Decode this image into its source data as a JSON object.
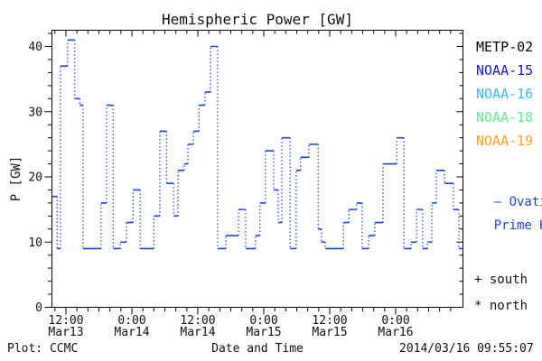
{
  "title": "Hemispheric Power [GW]",
  "footer": {
    "left": "Plot: CCMC",
    "timestamp": "2014/03/16 09:55:07"
  },
  "legend": {
    "items": [
      {
        "label": "METP-02",
        "color": "#000000"
      },
      {
        "label": "NOAA-15",
        "color": "#1414e0"
      },
      {
        "label": "NOAA-16",
        "color": "#33bbee"
      },
      {
        "label": "NOAA-18",
        "color": "#5fe98c"
      },
      {
        "label": "NOAA-19",
        "color": "#ff9e15"
      }
    ]
  },
  "annotations": {
    "ovation_line1": "— Ovation",
    "ovation_line2": "Prime HPI",
    "south": "+ south",
    "north": "* north"
  },
  "chart_data": {
    "type": "line",
    "subtype": "stepped-histogram-dotted",
    "title": "Hemispheric Power [GW]",
    "xlabel": "Date and Time",
    "ylabel": "P [GW]",
    "ylim": [
      0,
      42.5
    ],
    "y_major_ticks": [
      0,
      10,
      20,
      30,
      40
    ],
    "y_minor_step": 2,
    "grid": false,
    "x_hours_range": [
      9.4,
      84.3
    ],
    "x_minor_step_hours": 2,
    "x_major_ticks": [
      {
        "hour": 12,
        "time": "12:00",
        "date": "Mar13"
      },
      {
        "hour": 24,
        "time": "0:00",
        "date": "Mar14"
      },
      {
        "hour": 36,
        "time": "12:00",
        "date": "Mar14"
      },
      {
        "hour": 48,
        "time": "0:00",
        "date": "Mar15"
      },
      {
        "hour": 60,
        "time": "12:00",
        "date": "Mar15"
      },
      {
        "hour": 72,
        "time": "0:00",
        "date": "Mar16"
      }
    ],
    "series": [
      {
        "name": "Ovation Prime HPI",
        "color": "#1f44d4",
        "end_hour": 84.3,
        "steps_hour_value": [
          [
            9.4,
            17
          ],
          [
            10.4,
            9
          ],
          [
            11.0,
            37
          ],
          [
            12.3,
            41
          ],
          [
            13.6,
            32
          ],
          [
            14.5,
            31
          ],
          [
            15.1,
            9
          ],
          [
            18.4,
            16
          ],
          [
            19.4,
            31
          ],
          [
            20.6,
            9
          ],
          [
            21.9,
            10
          ],
          [
            23.0,
            13
          ],
          [
            24.2,
            18
          ],
          [
            25.5,
            9
          ],
          [
            28.0,
            14
          ],
          [
            29.1,
            27
          ],
          [
            30.3,
            19
          ],
          [
            31.6,
            14
          ],
          [
            32.4,
            21
          ],
          [
            33.5,
            22
          ],
          [
            34.2,
            25
          ],
          [
            35.2,
            27
          ],
          [
            36.2,
            31
          ],
          [
            37.3,
            33
          ],
          [
            38.3,
            40
          ],
          [
            39.6,
            9
          ],
          [
            41.1,
            11
          ],
          [
            43.4,
            15
          ],
          [
            44.7,
            9
          ],
          [
            46.5,
            11
          ],
          [
            47.3,
            16
          ],
          [
            48.3,
            24
          ],
          [
            49.8,
            18
          ],
          [
            50.6,
            13
          ],
          [
            51.3,
            26
          ],
          [
            52.8,
            9
          ],
          [
            53.9,
            21
          ],
          [
            54.7,
            23
          ],
          [
            56.2,
            25
          ],
          [
            57.9,
            12
          ],
          [
            58.5,
            10
          ],
          [
            59.2,
            9
          ],
          [
            62.5,
            13
          ],
          [
            63.5,
            15
          ],
          [
            64.9,
            16
          ],
          [
            65.9,
            9
          ],
          [
            67.1,
            11
          ],
          [
            68.2,
            13
          ],
          [
            69.7,
            22
          ],
          [
            72.2,
            26
          ],
          [
            73.5,
            9
          ],
          [
            74.8,
            10
          ],
          [
            75.8,
            15
          ],
          [
            76.9,
            9
          ],
          [
            77.8,
            10
          ],
          [
            78.6,
            16
          ],
          [
            79.4,
            21
          ],
          [
            80.9,
            19
          ],
          [
            82.5,
            15
          ],
          [
            83.5,
            9
          ]
        ]
      }
    ]
  }
}
